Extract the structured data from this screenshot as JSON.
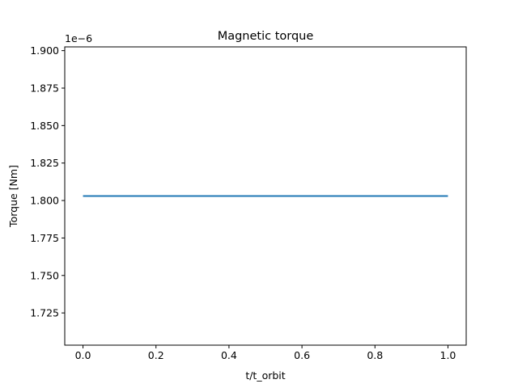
{
  "chart_data": {
    "type": "line",
    "title": "Magnetic torque",
    "xlabel": "t/t_orbit",
    "ylabel": "Torque [Nm]",
    "offset_text": "1e−6",
    "xlim": [
      -0.05,
      1.05
    ],
    "ylim": [
      1.7035,
      1.9025
    ],
    "x_ticks": [
      0.0,
      0.2,
      0.4,
      0.6,
      0.8,
      1.0
    ],
    "x_tick_labels": [
      "0.0",
      "0.2",
      "0.4",
      "0.6",
      "0.8",
      "1.0"
    ],
    "y_ticks": [
      1.725,
      1.75,
      1.775,
      1.8,
      1.825,
      1.85,
      1.875,
      1.9
    ],
    "y_tick_labels": [
      "1.725",
      "1.750",
      "1.775",
      "1.800",
      "1.825",
      "1.850",
      "1.875",
      "1.900"
    ],
    "grid": false,
    "series": [
      {
        "color": "#1f77b4",
        "x": [
          0.0,
          1.0
        ],
        "y": [
          1.803,
          1.803
        ]
      }
    ]
  }
}
